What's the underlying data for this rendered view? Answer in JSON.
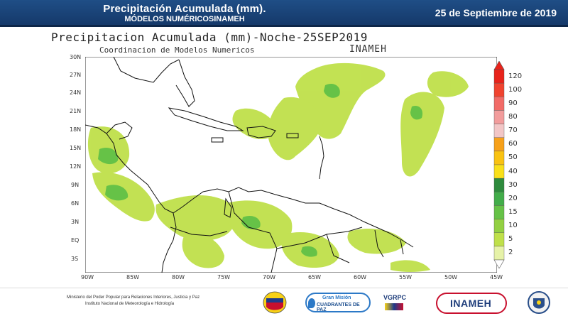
{
  "header": {
    "title": "Precipitación Acumulada  (mm).",
    "subtitle": "MÓDELOS NUMÉRICOSINAMEH",
    "date": "25 de Septiembre de 2019"
  },
  "map": {
    "title": "Precipitacion Acumulada (mm)-Noche-25SEP2019",
    "subtitle": "Coordinacion de Modelos Numericos",
    "org": "INAMEH",
    "lat_ticks": [
      "30N",
      "27N",
      "24N",
      "21N",
      "18N",
      "15N",
      "12N",
      "9N",
      "6N",
      "3N",
      "EQ",
      "3S"
    ],
    "lon_ticks": [
      "90W",
      "85W",
      "80W",
      "75W",
      "70W",
      "65W",
      "60W",
      "55W",
      "50W",
      "45W"
    ]
  },
  "colorbar": {
    "levels": [
      "120",
      "100",
      "90",
      "80",
      "70",
      "60",
      "50",
      "40",
      "30",
      "20",
      "15",
      "10",
      "5",
      "2"
    ],
    "colors": [
      "#e8231b",
      "#f0432f",
      "#f26b67",
      "#f29c9c",
      "#f2c6c6",
      "#f7a11a",
      "#f9c212",
      "#f9e01a",
      "#2e8b3d",
      "#42ad4a",
      "#66c247",
      "#93d042",
      "#bfe04a",
      "#e6f2a8"
    ]
  },
  "footer": {
    "line1": "Ministerio del Poder Popular para Relaciones Interiores, Justicia y Paz",
    "line2": "Instituto  Nacional de Meteorología e Hidrología",
    "logo_gm_top": "Gran Misión",
    "logo_gm_bottom": "CUADRANTES DE PAZ",
    "logo_vgrpc": "VGRPC",
    "logo_inameh": "INAMEH"
  }
}
